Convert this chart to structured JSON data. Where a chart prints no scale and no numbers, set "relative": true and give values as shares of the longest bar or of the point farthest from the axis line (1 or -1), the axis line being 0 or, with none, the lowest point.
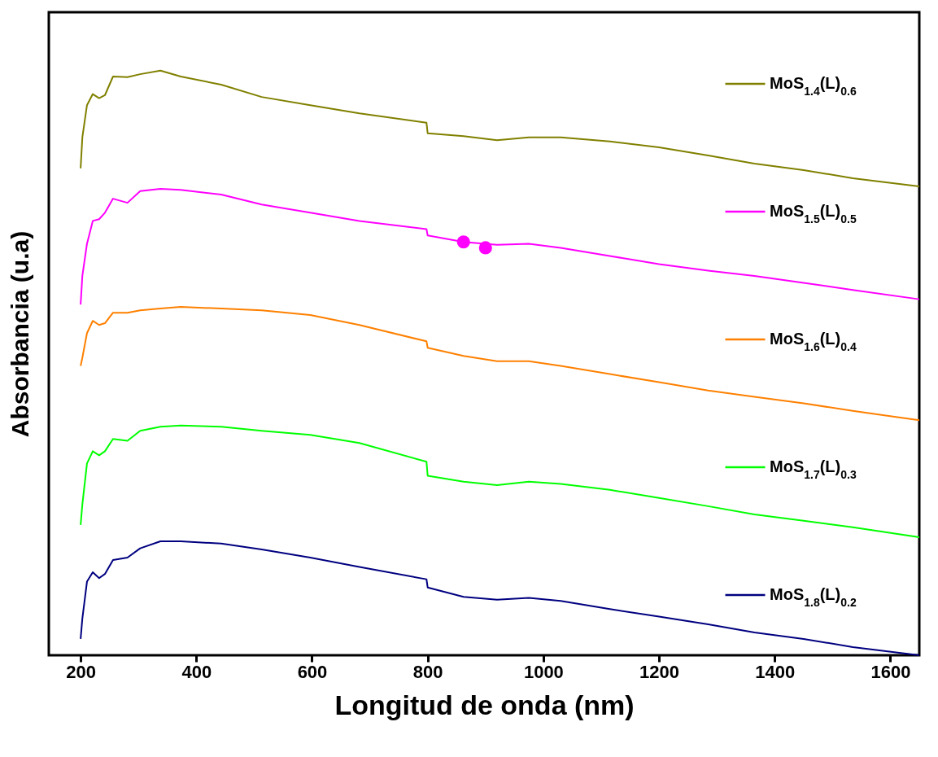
{
  "chart_data": {
    "type": "line",
    "relative": true,
    "xlabel": "Longitud de onda (nm)",
    "ylabel": "Absorbancia (u.a)",
    "xlim": [
      145,
      1650
    ],
    "xticks": [
      200,
      400,
      600,
      800,
      1000,
      1200,
      1400,
      1600
    ],
    "x": [
      200,
      203,
      211,
      221,
      232,
      242,
      256,
      281,
      303,
      338,
      373,
      443,
      513,
      597,
      682,
      798,
      800,
      862,
      920,
      975,
      1030,
      1115,
      1200,
      1285,
      1365,
      1450,
      1535,
      1650
    ],
    "legend": "right",
    "grid": false,
    "series": [
      {
        "name": "MoS$_{1.4}$(L)$_{0.6}$",
        "color": "#808000",
        "values": [
          0.833,
          0.886,
          0.941,
          0.96,
          0.953,
          0.958,
          0.99,
          0.989,
          0.994,
          1,
          0.99,
          0.976,
          0.955,
          0.941,
          0.927,
          0.911,
          0.893,
          0.888,
          0.881,
          0.886,
          0.886,
          0.879,
          0.869,
          0.855,
          0.841,
          0.83,
          0.816,
          0.802
        ]
      },
      {
        "name": "MoS$_{1.5}$(L)$_{0.5}$",
        "color": "#ff00ff",
        "values": [
          0.6,
          0.649,
          0.704,
          0.743,
          0.746,
          0.757,
          0.781,
          0.774,
          0.794,
          0.798,
          0.796,
          0.788,
          0.771,
          0.757,
          0.743,
          0.729,
          0.718,
          0.707,
          0.702,
          0.704,
          0.697,
          0.683,
          0.669,
          0.658,
          0.649,
          0.637,
          0.625,
          0.609
        ]
      },
      {
        "name": "MoS$_{1.6}$(L)$_{0.4}$",
        "color": "#ff8000",
        "values": [
          0.495,
          0.509,
          0.551,
          0.572,
          0.565,
          0.568,
          0.586,
          0.586,
          0.59,
          0.593,
          0.596,
          0.593,
          0.59,
          0.582,
          0.565,
          0.537,
          0.526,
          0.512,
          0.503,
          0.503,
          0.495,
          0.481,
          0.467,
          0.453,
          0.442,
          0.431,
          0.418,
          0.402
        ]
      },
      {
        "name": "MoS$_{1.7}$(L)$_{0.3}$",
        "color": "#00ff00",
        "values": [
          0.223,
          0.258,
          0.328,
          0.349,
          0.342,
          0.349,
          0.37,
          0.367,
          0.384,
          0.391,
          0.393,
          0.391,
          0.384,
          0.377,
          0.363,
          0.331,
          0.307,
          0.297,
          0.291,
          0.297,
          0.293,
          0.283,
          0.269,
          0.255,
          0.241,
          0.23,
          0.219,
          0.202
        ]
      },
      {
        "name": "MoS$_{1.8}$(L)$_{0.2}$",
        "color": "#000080",
        "values": [
          0.028,
          0.063,
          0.126,
          0.142,
          0.132,
          0.139,
          0.163,
          0.167,
          0.183,
          0.195,
          0.195,
          0.191,
          0.181,
          0.167,
          0.151,
          0.13,
          0.116,
          0.1,
          0.095,
          0.098,
          0.093,
          0.079,
          0.066,
          0.053,
          0.039,
          0.028,
          0.014,
          0
        ]
      },
      {
        "type": "scatter",
        "color": "#ff00ff",
        "x": [
          862,
          900
        ],
        "values": [
          0.707,
          0.697
        ]
      }
    ]
  }
}
